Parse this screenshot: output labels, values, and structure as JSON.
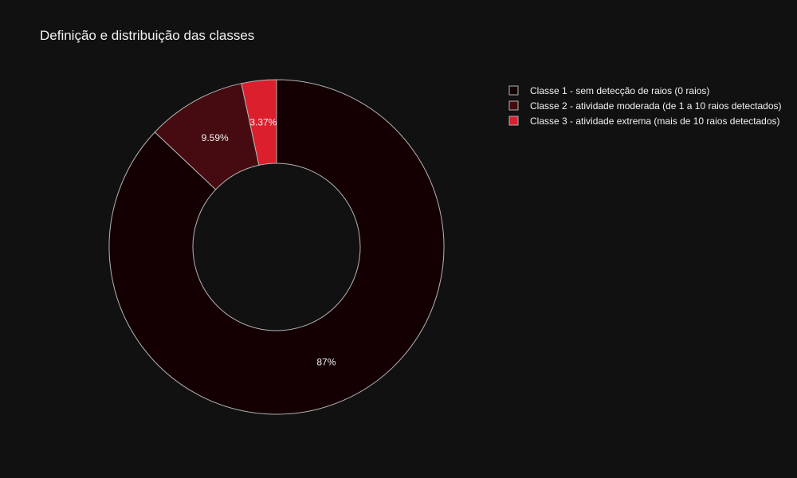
{
  "chart_data": {
    "type": "pie",
    "title": "Definição e distribuição das classes",
    "hole": 0.5,
    "direction": "clockwise",
    "start_angle_deg": 90,
    "slice_border_color": "#b3b3b3",
    "background_color": "#111111",
    "legend_position": "top-right",
    "slices": [
      {
        "label": "Classe 1 - sem detecção de raios (0 raios)",
        "value": 87.04,
        "text": "87%",
        "color": "#140003"
      },
      {
        "label": "Classe 2 - atividade moderada (de 1 a 10 raios detectados)",
        "value": 9.59,
        "text": "9.59%",
        "color": "#450b10"
      },
      {
        "label": "Classe 3 - atividade extrema (mais de 10 raios detectados)",
        "value": 3.37,
        "text": "3.37%",
        "color": "#dc1f2d"
      }
    ]
  }
}
